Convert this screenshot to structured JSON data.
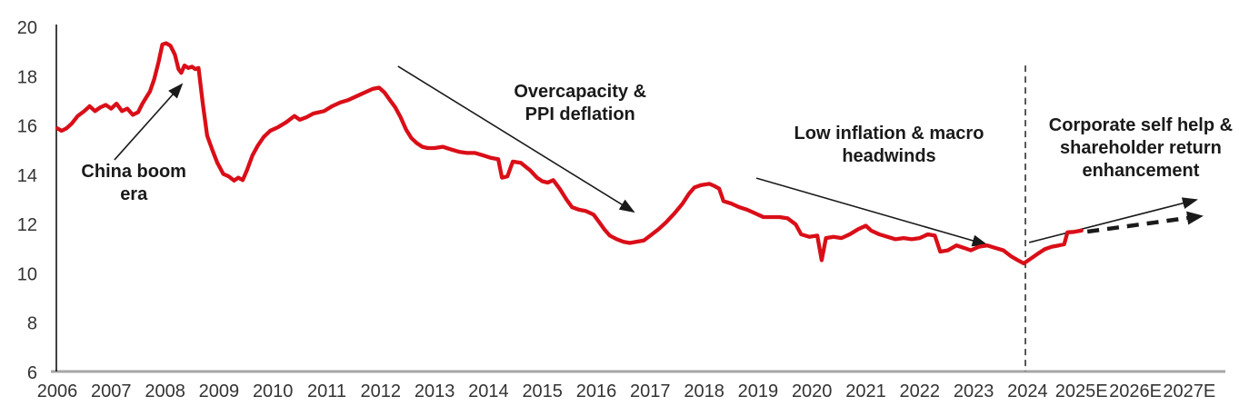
{
  "chart_data": {
    "type": "line",
    "colors": {
      "series_red": "#da0e18",
      "axis_x_line": "#a6a6a6",
      "axis_y_line": "#000000",
      "annotation_ink": "#1a1a1a",
      "tick_ink": "#333333",
      "divider_ink": "#111111"
    },
    "x_axis": {
      "tick_labels": [
        "2006",
        "2007",
        "2008",
        "2009",
        "2010",
        "2011",
        "2012",
        "2013",
        "2014",
        "2015",
        "2016",
        "2017",
        "2018",
        "2019",
        "2020",
        "2021",
        "2022",
        "2023",
        "2024",
        "2025E",
        "2026E",
        "2027E"
      ],
      "start_year": 2006,
      "grid": false
    },
    "y_axis": {
      "tick_labels": [
        20,
        18,
        16,
        14,
        12,
        10,
        8,
        6
      ],
      "min": 6,
      "max": 20,
      "grid": false
    },
    "divider": {
      "x_year": 2023.96,
      "v_top": 18.45,
      "v_bottom": 6.05,
      "style": "dashed"
    },
    "series": [
      {
        "points": [
          [
            2006.0,
            15.9
          ],
          [
            2006.08,
            15.8
          ],
          [
            2006.17,
            15.9
          ],
          [
            2006.27,
            16.1
          ],
          [
            2006.38,
            16.4
          ],
          [
            2006.5,
            16.6
          ],
          [
            2006.6,
            16.8
          ],
          [
            2006.7,
            16.6
          ],
          [
            2006.8,
            16.75
          ],
          [
            2006.9,
            16.85
          ],
          [
            2007.0,
            16.7
          ],
          [
            2007.1,
            16.9
          ],
          [
            2007.2,
            16.6
          ],
          [
            2007.3,
            16.7
          ],
          [
            2007.4,
            16.45
          ],
          [
            2007.5,
            16.55
          ],
          [
            2007.58,
            16.9
          ],
          [
            2007.65,
            17.15
          ],
          [
            2007.72,
            17.4
          ],
          [
            2007.8,
            17.9
          ],
          [
            2007.88,
            18.6
          ],
          [
            2007.95,
            19.3
          ],
          [
            2008.02,
            19.35
          ],
          [
            2008.1,
            19.25
          ],
          [
            2008.18,
            18.9
          ],
          [
            2008.25,
            18.3
          ],
          [
            2008.3,
            18.15
          ],
          [
            2008.36,
            18.45
          ],
          [
            2008.43,
            18.35
          ],
          [
            2008.5,
            18.4
          ],
          [
            2008.56,
            18.3
          ],
          [
            2008.62,
            18.35
          ],
          [
            2008.7,
            16.9
          ],
          [
            2008.78,
            15.6
          ],
          [
            2008.88,
            15.0
          ],
          [
            2008.97,
            14.5
          ],
          [
            2009.08,
            14.05
          ],
          [
            2009.18,
            13.95
          ],
          [
            2009.28,
            13.78
          ],
          [
            2009.36,
            13.9
          ],
          [
            2009.44,
            13.8
          ],
          [
            2009.52,
            14.2
          ],
          [
            2009.62,
            14.8
          ],
          [
            2009.72,
            15.2
          ],
          [
            2009.83,
            15.55
          ],
          [
            2009.95,
            15.8
          ],
          [
            2010.1,
            15.95
          ],
          [
            2010.25,
            16.15
          ],
          [
            2010.4,
            16.4
          ],
          [
            2010.5,
            16.25
          ],
          [
            2010.62,
            16.35
          ],
          [
            2010.75,
            16.5
          ],
          [
            2010.95,
            16.6
          ],
          [
            2011.1,
            16.8
          ],
          [
            2011.25,
            16.95
          ],
          [
            2011.4,
            17.05
          ],
          [
            2011.55,
            17.2
          ],
          [
            2011.7,
            17.35
          ],
          [
            2011.85,
            17.5
          ],
          [
            2011.97,
            17.55
          ],
          [
            2012.07,
            17.35
          ],
          [
            2012.17,
            17.05
          ],
          [
            2012.27,
            16.75
          ],
          [
            2012.37,
            16.35
          ],
          [
            2012.47,
            15.85
          ],
          [
            2012.57,
            15.5
          ],
          [
            2012.67,
            15.3
          ],
          [
            2012.77,
            15.15
          ],
          [
            2012.87,
            15.1
          ],
          [
            2013.0,
            15.1
          ],
          [
            2013.15,
            15.15
          ],
          [
            2013.3,
            15.05
          ],
          [
            2013.45,
            14.95
          ],
          [
            2013.6,
            14.9
          ],
          [
            2013.75,
            14.9
          ],
          [
            2013.9,
            14.8
          ],
          [
            2014.05,
            14.7
          ],
          [
            2014.18,
            14.65
          ],
          [
            2014.25,
            13.9
          ],
          [
            2014.35,
            13.95
          ],
          [
            2014.45,
            14.55
          ],
          [
            2014.6,
            14.5
          ],
          [
            2014.77,
            14.2
          ],
          [
            2014.9,
            13.9
          ],
          [
            2015.0,
            13.75
          ],
          [
            2015.1,
            13.7
          ],
          [
            2015.2,
            13.8
          ],
          [
            2015.32,
            13.45
          ],
          [
            2015.45,
            13.0
          ],
          [
            2015.55,
            12.7
          ],
          [
            2015.68,
            12.6
          ],
          [
            2015.8,
            12.55
          ],
          [
            2015.95,
            12.4
          ],
          [
            2016.05,
            12.1
          ],
          [
            2016.15,
            11.8
          ],
          [
            2016.25,
            11.55
          ],
          [
            2016.38,
            11.4
          ],
          [
            2016.5,
            11.3
          ],
          [
            2016.62,
            11.25
          ],
          [
            2016.75,
            11.3
          ],
          [
            2016.88,
            11.35
          ],
          [
            2017.0,
            11.55
          ],
          [
            2017.15,
            11.8
          ],
          [
            2017.3,
            12.1
          ],
          [
            2017.45,
            12.45
          ],
          [
            2017.6,
            12.85
          ],
          [
            2017.72,
            13.25
          ],
          [
            2017.82,
            13.5
          ],
          [
            2017.95,
            13.6
          ],
          [
            2018.1,
            13.65
          ],
          [
            2018.2,
            13.55
          ],
          [
            2018.28,
            13.45
          ],
          [
            2018.36,
            12.95
          ],
          [
            2018.5,
            12.85
          ],
          [
            2018.65,
            12.7
          ],
          [
            2018.8,
            12.6
          ],
          [
            2018.95,
            12.45
          ],
          [
            2019.1,
            12.3
          ],
          [
            2019.25,
            12.3
          ],
          [
            2019.4,
            12.3
          ],
          [
            2019.55,
            12.25
          ],
          [
            2019.7,
            12.0
          ],
          [
            2019.8,
            11.6
          ],
          [
            2019.95,
            11.5
          ],
          [
            2020.1,
            11.55
          ],
          [
            2020.18,
            10.55
          ],
          [
            2020.26,
            11.45
          ],
          [
            2020.4,
            11.5
          ],
          [
            2020.55,
            11.45
          ],
          [
            2020.7,
            11.6
          ],
          [
            2020.85,
            11.8
          ],
          [
            2021.0,
            11.95
          ],
          [
            2021.1,
            11.75
          ],
          [
            2021.25,
            11.6
          ],
          [
            2021.4,
            11.5
          ],
          [
            2021.55,
            11.4
          ],
          [
            2021.7,
            11.45
          ],
          [
            2021.85,
            11.4
          ],
          [
            2022.0,
            11.45
          ],
          [
            2022.15,
            11.6
          ],
          [
            2022.28,
            11.55
          ],
          [
            2022.38,
            10.9
          ],
          [
            2022.52,
            10.95
          ],
          [
            2022.68,
            11.15
          ],
          [
            2022.82,
            11.05
          ],
          [
            2022.95,
            10.95
          ],
          [
            2023.1,
            11.1
          ],
          [
            2023.25,
            11.15
          ],
          [
            2023.4,
            11.05
          ],
          [
            2023.55,
            10.95
          ],
          [
            2023.7,
            10.7
          ],
          [
            2023.82,
            10.55
          ],
          [
            2023.93,
            10.42
          ],
          [
            2024.05,
            10.6
          ],
          [
            2024.18,
            10.8
          ],
          [
            2024.32,
            11.0
          ],
          [
            2024.45,
            11.1
          ],
          [
            2024.58,
            11.15
          ],
          [
            2024.68,
            11.2
          ],
          [
            2024.74,
            11.68
          ],
          [
            2024.86,
            11.7
          ],
          [
            2025.0,
            11.75
          ]
        ]
      }
    ],
    "annotations": [
      {
        "name": "china-boom",
        "lines": [
          "China boom",
          "era"
        ],
        "x_year": 2007.42,
        "v_first_line": 14.18
      },
      {
        "name": "overcapacity",
        "lines": [
          "Overcapacity &",
          "PPI deflation"
        ],
        "x_year": 2015.7,
        "v_first_line": 17.42
      },
      {
        "name": "low-inflation",
        "lines": [
          "Low inflation & macro",
          "headwinds"
        ],
        "x_year": 2021.43,
        "v_first_line": 15.73
      },
      {
        "name": "corporate-self-help",
        "lines": [
          "Corporate self help &",
          "shareholder return",
          "enhancement"
        ],
        "x_year": 2026.1,
        "v_first_line": 16.06
      }
    ],
    "arrows": [
      {
        "name": "china-boom-arrow",
        "from": [
          2007.06,
          14.62
        ],
        "to": [
          2008.31,
          17.68
        ],
        "style": "solid"
      },
      {
        "name": "overcapacity-arrow",
        "from": [
          2012.32,
          18.42
        ],
        "to": [
          2016.69,
          12.52
        ],
        "style": "solid"
      },
      {
        "name": "low-inflation-arrow",
        "from": [
          2018.97,
          13.88
        ],
        "to": [
          2023.23,
          11.19
        ],
        "style": "solid"
      },
      {
        "name": "projection-solid-arrow",
        "from": [
          2024.03,
          11.27
        ],
        "to": [
          2027.13,
          13.0
        ],
        "style": "solid"
      },
      {
        "name": "projection-dashed-arrow",
        "from": [
          2025.11,
          11.71
        ],
        "to": [
          2027.23,
          12.34
        ],
        "style": "dashed-bold"
      }
    ]
  }
}
